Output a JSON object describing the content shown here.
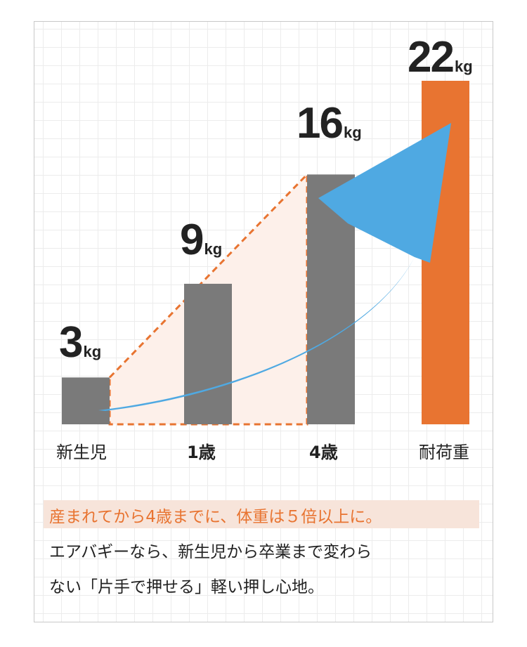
{
  "chart_data": {
    "type": "bar",
    "categories": [
      "新生児",
      "1歳",
      "4歳",
      "耐荷重"
    ],
    "values": [
      3,
      9,
      16,
      22
    ],
    "value_labels": [
      "3",
      "9",
      "16",
      "22"
    ],
    "unit": "kg",
    "ylim": [
      0,
      22
    ],
    "colors": {
      "bar": "#7a7a7a",
      "highlight_bar": "#e87431",
      "arrow": "#4fa9e2",
      "dash": "#e87431",
      "fill": "#fdf0ea"
    },
    "grid": true
  },
  "caption": {
    "highlight": "産まれてから4歳までに、体重は５倍以上に。",
    "lines": [
      "エアバギーなら、新生児から卒業まで変わら",
      "ない「片手で押せる」軽い押し心地。"
    ]
  }
}
